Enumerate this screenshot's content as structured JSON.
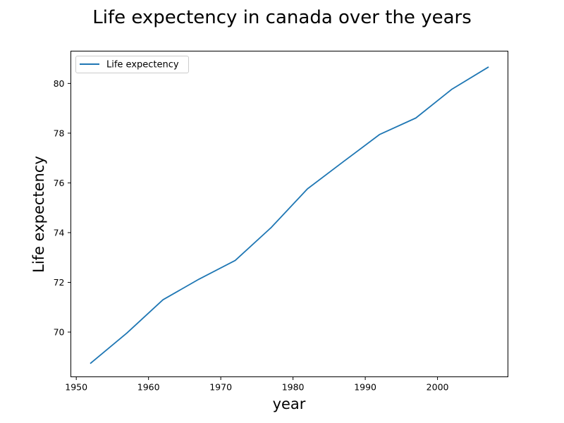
{
  "chart_data": {
    "type": "line",
    "title": "Life expectency in canada over the years",
    "xlabel": "year",
    "ylabel": "Life expectency",
    "xlim": [
      1949.25,
      2009.75
    ],
    "ylim": [
      68.2,
      81.3
    ],
    "xticks": [
      1950,
      1960,
      1970,
      1980,
      1990,
      2000
    ],
    "yticks": [
      70,
      72,
      74,
      76,
      78,
      80
    ],
    "grid": false,
    "legend_position": "top-left",
    "series": [
      {
        "name": "Life expectency",
        "color": "#1f77b4",
        "x": [
          1952,
          1957,
          1962,
          1967,
          1972,
          1977,
          1982,
          1987,
          1992,
          1997,
          2002,
          2007
        ],
        "y": [
          68.75,
          69.96,
          71.3,
          72.13,
          72.88,
          74.21,
          75.76,
          76.86,
          77.95,
          78.61,
          79.77,
          80.65
        ]
      }
    ]
  }
}
